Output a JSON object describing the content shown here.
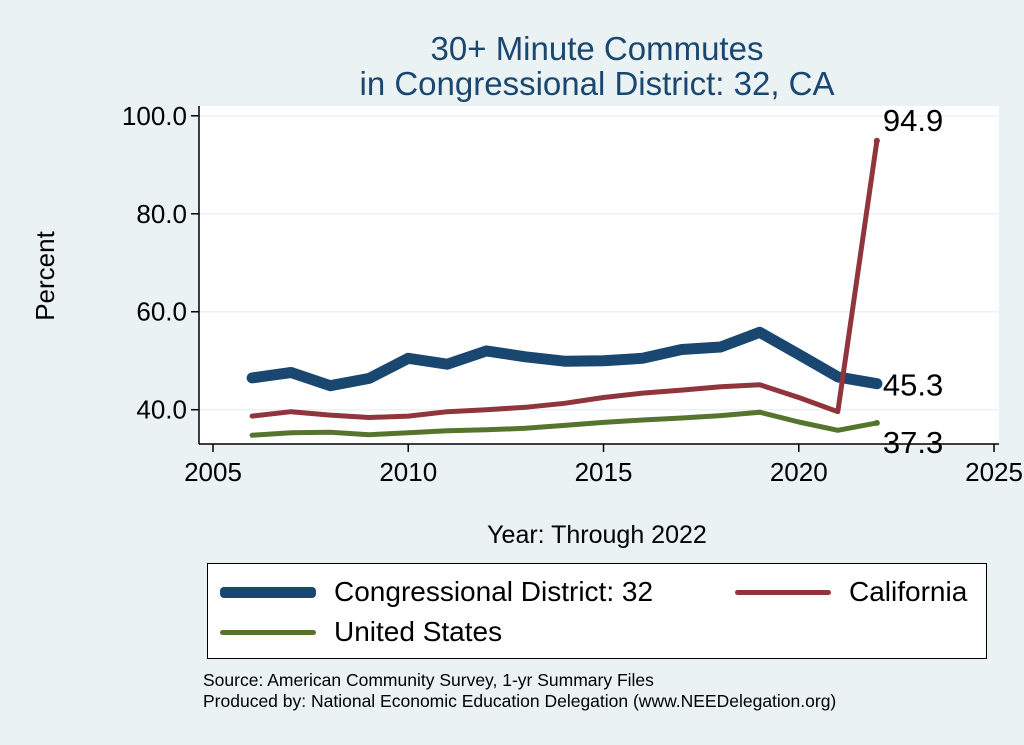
{
  "chart_data": {
    "type": "line",
    "title": [
      "30+ Minute Commutes",
      "in Congressional District:  32, CA"
    ],
    "xlabel": "Year: Through 2022",
    "ylabel": "Percent",
    "xlim": [
      2005,
      2025
    ],
    "ylim": [
      33,
      102
    ],
    "x_ticks": [
      2005,
      2010,
      2015,
      2020,
      2025
    ],
    "y_ticks": [
      40,
      60,
      80,
      100
    ],
    "y_tick_labels": [
      "40.0",
      "60.0",
      "80.0",
      "100.0"
    ],
    "x": [
      2006,
      2007,
      2008,
      2009,
      2010,
      2011,
      2012,
      2013,
      2014,
      2015,
      2016,
      2017,
      2018,
      2019,
      2020,
      2021,
      2022
    ],
    "series": [
      {
        "name": "Congressional District:  32",
        "color": "#1a476f",
        "values": [
          46.5,
          47.6,
          44.9,
          46.4,
          50.5,
          49.3,
          52.0,
          50.8,
          49.9,
          50.0,
          50.5,
          52.3,
          52.8,
          55.8,
          51.3,
          46.7,
          45.3
        ],
        "end_label": "45.3"
      },
      {
        "name": "California",
        "color": "#90353b",
        "values": [
          38.7,
          39.6,
          38.9,
          38.4,
          38.7,
          39.6,
          40.0,
          40.5,
          41.3,
          42.5,
          43.4,
          44.0,
          44.7,
          45.1,
          42.5,
          39.6,
          94.9
        ],
        "end_label": "94.9"
      },
      {
        "name": "United States",
        "color": "#55752f",
        "values": [
          34.8,
          35.3,
          35.4,
          34.9,
          35.3,
          35.7,
          35.9,
          36.2,
          36.8,
          37.4,
          37.9,
          38.3,
          38.8,
          39.5,
          37.5,
          35.8,
          37.3
        ],
        "end_label": "37.3"
      }
    ],
    "legend": [
      "Congressional District:  32",
      "California",
      "United States"
    ],
    "source_lines": [
      "Source: American Community Survey, 1-yr Summary Files",
      "Produced by: National Economic Education Delegation (www.NEEDelegation.org)"
    ]
  }
}
